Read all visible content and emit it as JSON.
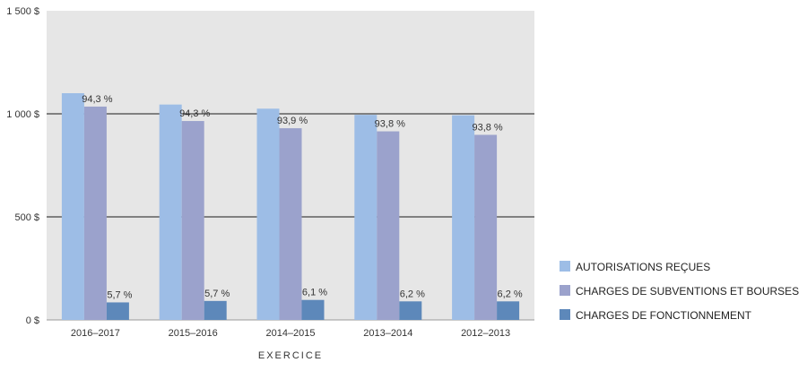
{
  "chart_data": {
    "type": "bar",
    "xlabel": "EXERCICE",
    "ylabel": "",
    "ylim": [
      0,
      1500
    ],
    "yticks": [
      {
        "value": 0,
        "label": "0 $"
      },
      {
        "value": 500,
        "label": "500 $"
      },
      {
        "value": 1000,
        "label": "1 000 $"
      },
      {
        "value": 1500,
        "label": "1 500 $"
      }
    ],
    "categories": [
      "2016–2017",
      "2015–2016",
      "2014–2015",
      "2013–2014",
      "2012–2013"
    ],
    "series": [
      {
        "name": "AUTORISATIONS REÇUES",
        "color": "#9dbde6",
        "values": [
          1100,
          1045,
          1025,
          995,
          993
        ],
        "labels": [
          "",
          "",
          "",
          "",
          ""
        ]
      },
      {
        "name": "CHARGES DE SUBVENTIONS ET BOURSES",
        "color": "#9ba2cc",
        "values": [
          1035,
          965,
          930,
          915,
          898
        ],
        "labels": [
          "94,3 %",
          "94,3 %",
          "93,9 %",
          "93,8 %",
          "93,8 %"
        ]
      },
      {
        "name": "CHARGES DE FONCTIONNEMENT",
        "color": "#5d88ba",
        "values": [
          85,
          92,
          97,
          90,
          90
        ],
        "labels": [
          "5,7 %",
          "5,7 %",
          "6,1 %",
          "6,2 %",
          "6,2 %"
        ]
      }
    ],
    "grid": true,
    "plot_background": "#e6e6e6",
    "legend_position": "right"
  }
}
